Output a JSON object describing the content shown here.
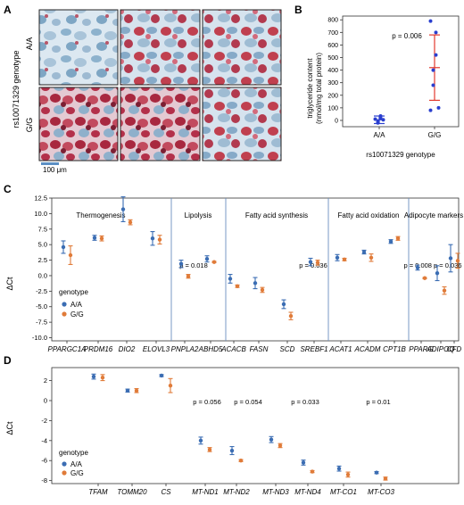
{
  "panel_labels": {
    "a": "A",
    "b": "B",
    "c": "C",
    "d": "D"
  },
  "panel_a": {
    "row_labels": [
      "A/A",
      "G/G"
    ],
    "genotype_label": "rs10071329 genotype",
    "scale_bar": "100 μm",
    "colors": {
      "stain_blue": "#8fb4cf",
      "stain_red": "#b3304a",
      "background": "#dfe9f1"
    }
  },
  "panel_b": {
    "type": "scatter",
    "ylabel_line1": "triglyceride content",
    "ylabel_line2": "(nmol/mg total protein)",
    "xlabel": "rs10071329 genotype",
    "categories": [
      "A/A",
      "G/G"
    ],
    "yticks": [
      0,
      100,
      200,
      300,
      400,
      500,
      600,
      700,
      800
    ],
    "ylim": [
      -50,
      830
    ],
    "annotation": "p = 0.006",
    "groups": [
      {
        "name": "A/A",
        "points": [
          10,
          20,
          35,
          -20,
          -10,
          5
        ],
        "mean": 5,
        "lower": -25,
        "upper": 35,
        "color": "#2a3fcf",
        "bar_color": "#2a3fcf"
      },
      {
        "name": "G/G",
        "points": [
          790,
          700,
          520,
          400,
          280,
          100,
          80
        ],
        "mean": 420,
        "lower": 160,
        "upper": 680,
        "color": "#2a3fcf",
        "bar_color": "#e23a2e"
      }
    ]
  },
  "chart_data": [
    {
      "type": "scatter",
      "ylabel": "ΔCt",
      "ylim": [
        -10.5,
        12.5
      ],
      "yticks": [
        -10.0,
        -7.5,
        -5.0,
        -2.5,
        0.0,
        2.5,
        5.0,
        7.5,
        10.0,
        12.5
      ],
      "groups": [
        {
          "title": "Thermogenesis",
          "genes": [
            "PPARGC1A",
            "PRDM16",
            "DIO2",
            "ELOVL3"
          ],
          "p": ""
        },
        {
          "title": "Lipolysis",
          "genes": [
            "PNPLA2",
            "ABHD5"
          ],
          "p": "p = 0.018"
        },
        {
          "title": "Fatty acid synthesis",
          "genes": [
            "ACACB",
            "FASN",
            "SCD",
            "SREBF1"
          ],
          "p": "p = 0.036"
        },
        {
          "title": "Fatty acid oxidation",
          "genes": [
            "ACAT1",
            "ACADM",
            "CPT1B"
          ],
          "p": ""
        },
        {
          "title": "Adipocyte markers",
          "genes": [
            "PPARG",
            "ADIPOQ",
            "CFD"
          ],
          "p": "p = 0.008  p = 0.036"
        }
      ],
      "legend": {
        "title": "genotype",
        "entries": [
          "A/A",
          "G/G"
        ]
      },
      "series": [
        {
          "name": "A/A",
          "color": "#3b6db3",
          "values": [
            4.6,
            6.1,
            10.7,
            6.0,
            1.9,
            2.7,
            -0.5,
            -1.2,
            -4.6,
            2.2,
            2.9,
            3.8,
            5.5,
            1.3,
            0.4,
            2.8
          ],
          "err": [
            1.0,
            0.4,
            2.0,
            1.1,
            0.6,
            0.5,
            0.7,
            0.9,
            0.7,
            0.6,
            0.5,
            0.3,
            0.3,
            0.4,
            1.2,
            2.2
          ]
        },
        {
          "name": "G/G",
          "color": "#e07b39",
          "values": [
            3.3,
            6.0,
            8.6,
            5.8,
            -0.1,
            2.2,
            -1.7,
            -2.3,
            -6.5,
            2.1,
            2.6,
            2.9,
            6.0,
            -0.4,
            -2.4,
            2.4
          ],
          "err": [
            1.5,
            0.4,
            0.4,
            0.7,
            0.3,
            0.1,
            0.2,
            0.4,
            0.6,
            0.4,
            0.2,
            0.6,
            0.3,
            0.1,
            0.6,
            1.2
          ]
        }
      ]
    },
    {
      "type": "scatter",
      "ylabel": "ΔCt",
      "ylim": [
        -8.3,
        3.3
      ],
      "yticks": [
        -8,
        -6,
        -4,
        -2,
        0,
        2
      ],
      "categories": [
        "TFAM",
        "TOMM20",
        "CS",
        "MT-ND1",
        "MT-ND2",
        "MT-ND3",
        "MT-ND4",
        "MT-CO1",
        "MT-CO3"
      ],
      "annotations": [
        {
          "after": "MT-ND1",
          "text": "p = 0.056"
        },
        {
          "after": "MT-ND2",
          "text": "p = 0.054"
        },
        {
          "after": "MT-ND4",
          "text": "p = 0.033"
        },
        {
          "after": "MT-CO3",
          "text": "p = 0.01"
        }
      ],
      "legend": {
        "title": "genotype",
        "entries": [
          "A/A",
          "G/G"
        ]
      },
      "series": [
        {
          "name": "A/A",
          "color": "#3b6db3",
          "values": [
            2.4,
            1.0,
            2.5,
            -4.0,
            -5.0,
            -3.9,
            -6.2,
            -6.8,
            -7.2
          ],
          "err": [
            0.25,
            0.15,
            0.1,
            0.35,
            0.4,
            0.3,
            0.25,
            0.25,
            0.1
          ]
        },
        {
          "name": "G/G",
          "color": "#e07b39",
          "values": [
            2.3,
            1.0,
            1.5,
            -4.9,
            -6.0,
            -4.5,
            -7.1,
            -7.4,
            -7.8
          ],
          "err": [
            0.3,
            0.2,
            0.7,
            0.2,
            0.1,
            0.2,
            0.1,
            0.25,
            0.15
          ]
        }
      ]
    }
  ]
}
